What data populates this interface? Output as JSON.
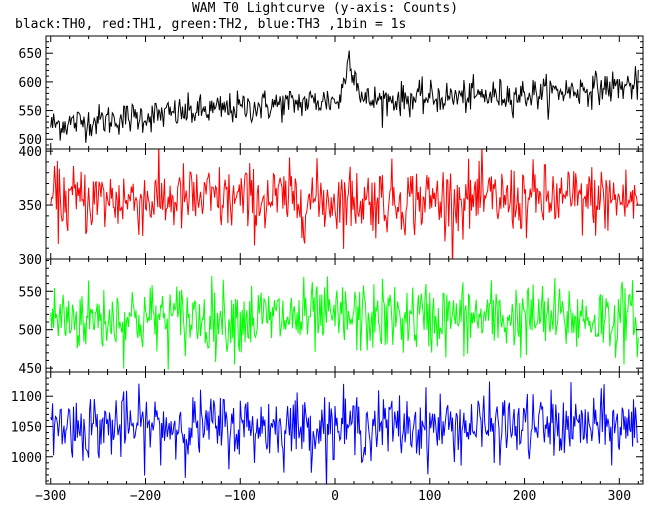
{
  "title": "WAM T0 Lightcurve (y-axis: Counts)",
  "subtitle": "black:TH0, red:TH1, green:TH2, blue:TH3 ,1bin = 1s",
  "chart_data": {
    "type": "line",
    "title": "WAM T0 Lightcurve (y-axis: Counts)",
    "subtitle": "black:TH0, red:TH1, green:TH2, blue:TH3 ,1bin = 1s",
    "x": {
      "range": [
        -305,
        325
      ],
      "ticks": [
        -300,
        -200,
        -100,
        0,
        100,
        200,
        300
      ],
      "step": 1
    },
    "grid": false,
    "panels": [
      {
        "name": "TH0",
        "color": "#000000",
        "ylim": [
          483,
          680
        ],
        "yticks": [
          500,
          550,
          600,
          650
        ],
        "baseline": [
          [
            -300,
            525
          ],
          [
            -200,
            540
          ],
          [
            -100,
            555
          ],
          [
            -5,
            568
          ],
          [
            20,
            565
          ],
          [
            40,
            568
          ],
          [
            100,
            572
          ],
          [
            200,
            578
          ],
          [
            320,
            595
          ]
        ],
        "noise_sd": 14,
        "burst": {
          "t_start": 5,
          "t_peak": 15,
          "t_end": 30,
          "peak": 645
        }
      },
      {
        "name": "TH1",
        "color": "#ff0000",
        "ylim": [
          300,
          402
        ],
        "yticks": [
          300,
          350,
          400
        ],
        "baseline": [
          [
            -300,
            355
          ],
          [
            320,
            355
          ]
        ],
        "noise_sd": 16
      },
      {
        "name": "TH2",
        "color": "#00ff00",
        "ylim": [
          445,
          592
        ],
        "yticks": [
          450,
          500,
          550
        ],
        "baseline": [
          [
            -300,
            515
          ],
          [
            320,
            515
          ]
        ],
        "noise_sd": 23
      },
      {
        "name": "TH3",
        "color": "#0000ff",
        "ylim": [
          955,
          1140
        ],
        "yticks": [
          1000,
          1050,
          1100
        ],
        "baseline": [
          [
            -300,
            1050
          ],
          [
            320,
            1050
          ]
        ],
        "noise_sd": 27
      }
    ]
  }
}
